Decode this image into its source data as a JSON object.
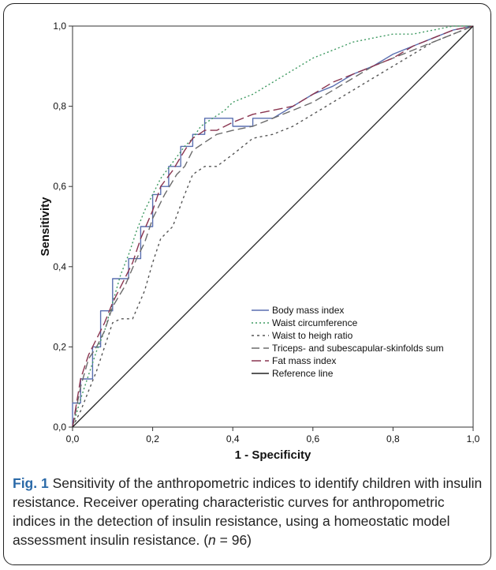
{
  "chart_data": {
    "type": "line",
    "xlabel": "1 - Specificity",
    "ylabel": "Sensitivity",
    "xlim": [
      0,
      1
    ],
    "ylim": [
      0,
      1
    ],
    "xticks": [
      "0,0",
      "0,2",
      "0,4",
      "0,6",
      "0,8",
      "1,0"
    ],
    "yticks": [
      "0,0",
      "0,2",
      "0,4",
      "0,6",
      "0,8",
      "1,0"
    ],
    "legend_position": "center-right",
    "series": [
      {
        "name": "Body mass index",
        "color": "#5a6fb0",
        "dash": "",
        "x": [
          0,
          0,
          0.02,
          0.02,
          0.05,
          0.05,
          0.07,
          0.07,
          0.1,
          0.1,
          0.14,
          0.14,
          0.17,
          0.17,
          0.2,
          0.2,
          0.22,
          0.22,
          0.24,
          0.24,
          0.27,
          0.27,
          0.3,
          0.3,
          0.33,
          0.33,
          0.4,
          0.4,
          0.45,
          0.45,
          0.5,
          0.55,
          0.6,
          0.65,
          0.7,
          0.75,
          0.8,
          0.85,
          0.9,
          0.95,
          1.0
        ],
        "y": [
          0,
          0.06,
          0.06,
          0.12,
          0.12,
          0.2,
          0.2,
          0.29,
          0.29,
          0.37,
          0.37,
          0.42,
          0.42,
          0.5,
          0.5,
          0.58,
          0.58,
          0.6,
          0.6,
          0.65,
          0.65,
          0.7,
          0.7,
          0.73,
          0.73,
          0.77,
          0.77,
          0.75,
          0.75,
          0.77,
          0.77,
          0.8,
          0.83,
          0.85,
          0.88,
          0.9,
          0.93,
          0.95,
          0.97,
          0.99,
          1.0
        ]
      },
      {
        "name": "Waist circumference",
        "color": "#3f9a62",
        "dash": "2 3",
        "x": [
          0,
          0.02,
          0.04,
          0.06,
          0.08,
          0.1,
          0.12,
          0.14,
          0.16,
          0.18,
          0.2,
          0.22,
          0.25,
          0.28,
          0.3,
          0.32,
          0.35,
          0.38,
          0.4,
          0.45,
          0.5,
          0.55,
          0.6,
          0.65,
          0.7,
          0.75,
          0.8,
          0.85,
          0.9,
          0.95,
          1.0
        ],
        "y": [
          0,
          0.07,
          0.13,
          0.19,
          0.24,
          0.31,
          0.38,
          0.43,
          0.49,
          0.54,
          0.58,
          0.62,
          0.66,
          0.7,
          0.72,
          0.75,
          0.77,
          0.79,
          0.81,
          0.83,
          0.86,
          0.89,
          0.92,
          0.94,
          0.96,
          0.97,
          0.98,
          0.98,
          0.99,
          1.0,
          1.0
        ]
      },
      {
        "name": "Waist to heigh ratio",
        "color": "#555555",
        "dash": "3 4",
        "x": [
          0,
          0.02,
          0.04,
          0.06,
          0.08,
          0.1,
          0.12,
          0.15,
          0.18,
          0.2,
          0.22,
          0.25,
          0.28,
          0.3,
          0.33,
          0.36,
          0.4,
          0.45,
          0.5,
          0.55,
          0.6,
          0.65,
          0.7,
          0.75,
          0.8,
          0.85,
          0.9,
          0.95,
          1.0
        ],
        "y": [
          0,
          0.04,
          0.09,
          0.14,
          0.2,
          0.26,
          0.27,
          0.27,
          0.34,
          0.41,
          0.47,
          0.5,
          0.58,
          0.63,
          0.65,
          0.65,
          0.68,
          0.72,
          0.73,
          0.75,
          0.78,
          0.81,
          0.84,
          0.87,
          0.9,
          0.93,
          0.96,
          0.98,
          1.0
        ]
      },
      {
        "name": "Triceps- and subescapular-skinfolds sum",
        "color": "#6b6b6b",
        "dash": "10 5",
        "x": [
          0,
          0.02,
          0.04,
          0.06,
          0.08,
          0.1,
          0.13,
          0.16,
          0.18,
          0.2,
          0.23,
          0.26,
          0.28,
          0.3,
          0.33,
          0.36,
          0.4,
          0.45,
          0.5,
          0.55,
          0.6,
          0.65,
          0.7,
          0.75,
          0.8,
          0.85,
          0.9,
          0.95,
          1.0
        ],
        "y": [
          0,
          0.1,
          0.17,
          0.2,
          0.24,
          0.3,
          0.35,
          0.42,
          0.46,
          0.52,
          0.58,
          0.63,
          0.65,
          0.69,
          0.71,
          0.73,
          0.74,
          0.75,
          0.77,
          0.79,
          0.81,
          0.84,
          0.87,
          0.9,
          0.92,
          0.94,
          0.96,
          0.98,
          1.0
        ]
      },
      {
        "name": "Fat mass index",
        "color": "#8a3550",
        "dash": "12 5",
        "x": [
          0,
          0.02,
          0.04,
          0.06,
          0.08,
          0.1,
          0.12,
          0.15,
          0.17,
          0.2,
          0.22,
          0.25,
          0.28,
          0.3,
          0.33,
          0.36,
          0.4,
          0.45,
          0.5,
          0.55,
          0.6,
          0.65,
          0.7,
          0.75,
          0.8,
          0.85,
          0.9,
          0.95,
          1.0
        ],
        "y": [
          0,
          0.12,
          0.18,
          0.22,
          0.26,
          0.31,
          0.35,
          0.41,
          0.47,
          0.54,
          0.6,
          0.64,
          0.69,
          0.72,
          0.74,
          0.74,
          0.76,
          0.78,
          0.79,
          0.8,
          0.83,
          0.86,
          0.88,
          0.9,
          0.92,
          0.95,
          0.97,
          0.99,
          1.0
        ]
      },
      {
        "name": "Reference line",
        "color": "#222222",
        "dash": "",
        "x": [
          0,
          1
        ],
        "y": [
          0,
          1
        ]
      }
    ]
  },
  "caption": {
    "label": "Fig. 1",
    "text_part1": " Sensitivity of the anthropometric indices to identify children with insulin resistance. Receiver operating characteristic curves for anthropometric indices in the detection of insulin resistance, using a homeostatic model assessment insulin resistance. (",
    "n_symbol": "n",
    "text_part2": " = 96)"
  }
}
